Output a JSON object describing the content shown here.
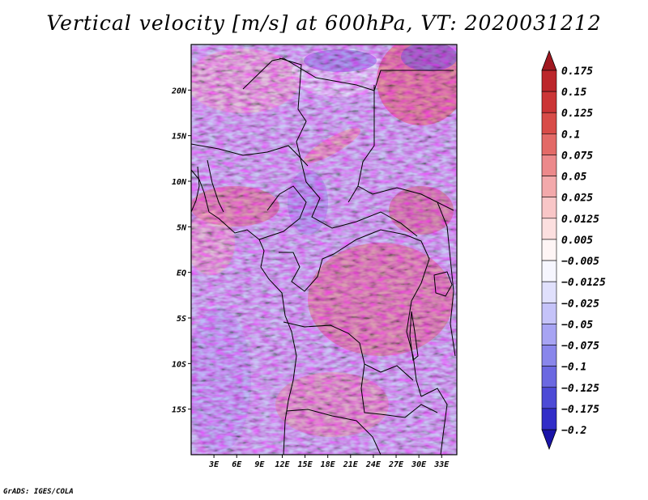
{
  "title": "Vertical velocity [m/s] at 600hPa, VT: 2020031212",
  "credit": "GrADS: IGES/COLA",
  "chart_data": {
    "type": "heatmap",
    "variable": "Vertical velocity",
    "units": "m/s",
    "level": "600hPa",
    "valid_time": "2020031212",
    "lon_range": [
      0,
      35
    ],
    "lat_range": [
      -20,
      25
    ],
    "x_ticks": [
      {
        "value": 3,
        "label": "3E"
      },
      {
        "value": 6,
        "label": "6E"
      },
      {
        "value": 9,
        "label": "9E"
      },
      {
        "value": 12,
        "label": "12E"
      },
      {
        "value": 15,
        "label": "15E"
      },
      {
        "value": 18,
        "label": "18E"
      },
      {
        "value": 21,
        "label": "21E"
      },
      {
        "value": 24,
        "label": "24E"
      },
      {
        "value": 27,
        "label": "27E"
      },
      {
        "value": 30,
        "label": "30E"
      },
      {
        "value": 33,
        "label": "33E"
      }
    ],
    "y_ticks": [
      {
        "value": 20,
        "label": "20N"
      },
      {
        "value": 15,
        "label": "15N"
      },
      {
        "value": 10,
        "label": "10N"
      },
      {
        "value": 5,
        "label": "5N"
      },
      {
        "value": 0,
        "label": "EQ"
      },
      {
        "value": -5,
        "label": "5S"
      },
      {
        "value": -10,
        "label": "10S"
      },
      {
        "value": -15,
        "label": "15S"
      }
    ],
    "colorbar": {
      "levels": [
        {
          "label": "0.175",
          "color": "#b41f25"
        },
        {
          "label": "0.15",
          "color": "#c42c30"
        },
        {
          "label": "0.125",
          "color": "#d23d3c"
        },
        {
          "label": "0.1",
          "color": "#de5a54"
        },
        {
          "label": "0.075",
          "color": "#e8797a"
        },
        {
          "label": "0.05",
          "color": "#f0999b"
        },
        {
          "label": "0.025",
          "color": "#f6b8ba"
        },
        {
          "label": "0.0125",
          "color": "#fad3d4"
        },
        {
          "label": "0.005",
          "color": "#fdeaea"
        },
        {
          "label": "−0.005",
          "color": "#ffffff"
        },
        {
          "label": "−0.0125",
          "color": "#ececfd"
        },
        {
          "label": "−0.025",
          "color": "#d4d3fb"
        },
        {
          "label": "−0.05",
          "color": "#b6b3f6"
        },
        {
          "label": "−0.075",
          "color": "#9895ef"
        },
        {
          "label": "−0.1",
          "color": "#7a77e6"
        },
        {
          "label": "−0.125",
          "color": "#5c59dc"
        },
        {
          "label": "−0.175",
          "color": "#3e3ad0"
        },
        {
          "label": "−0.2",
          "color": "#2620c0"
        }
      ],
      "top_arrow_color": "#a01820",
      "bottom_arrow_color": "#1a14a8"
    }
  }
}
